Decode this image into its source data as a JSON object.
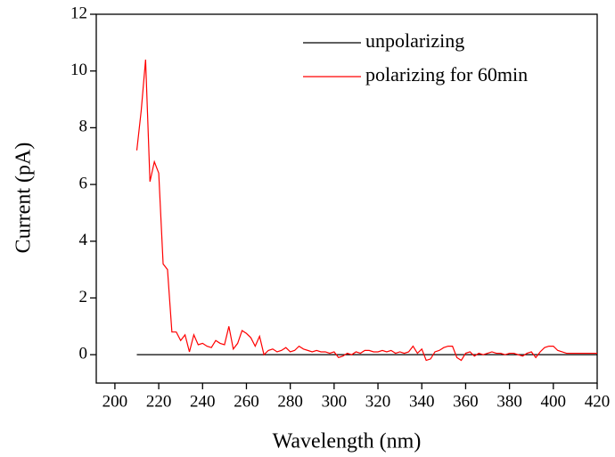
{
  "chart_data": {
    "type": "line",
    "xlabel": "Wavelength (nm)",
    "ylabel": "Current (pA)",
    "x": [
      210,
      212,
      214,
      216,
      218,
      220,
      222,
      224,
      226,
      228,
      230,
      232,
      234,
      236,
      238,
      240,
      242,
      244,
      246,
      248,
      250,
      252,
      254,
      256,
      258,
      260,
      262,
      264,
      266,
      268,
      270,
      272,
      274,
      276,
      278,
      280,
      282,
      284,
      286,
      288,
      290,
      292,
      294,
      296,
      298,
      300,
      302,
      304,
      306,
      308,
      310,
      312,
      314,
      316,
      318,
      320,
      322,
      324,
      326,
      328,
      330,
      332,
      334,
      336,
      338,
      340,
      342,
      344,
      346,
      348,
      350,
      352,
      354,
      356,
      358,
      360,
      362,
      364,
      366,
      368,
      370,
      372,
      374,
      376,
      378,
      380,
      382,
      384,
      386,
      388,
      390,
      392,
      394,
      396,
      398,
      400,
      402,
      404,
      406,
      408,
      410,
      412,
      414,
      416,
      418,
      420
    ],
    "series": [
      {
        "name": "unpolarizing",
        "color": "#000000",
        "values": [
          0,
          0,
          0,
          0,
          0,
          0,
          0,
          0,
          0,
          0,
          0,
          0,
          0,
          0,
          0,
          0,
          0,
          0,
          0,
          0,
          0,
          0,
          0,
          0,
          0,
          0,
          0,
          0,
          0,
          0,
          0,
          0,
          0,
          0,
          0,
          0,
          0,
          0,
          0,
          0,
          0,
          0,
          0,
          0,
          0,
          0,
          0,
          0,
          0,
          0,
          0,
          0,
          0,
          0,
          0,
          0,
          0,
          0,
          0,
          0,
          0,
          0,
          0,
          0,
          0,
          0,
          0,
          0,
          0,
          0,
          0,
          0,
          0,
          0,
          0,
          0,
          0,
          0,
          0,
          0,
          0,
          0,
          0,
          0,
          0,
          0,
          0,
          0,
          0,
          0,
          0,
          0,
          0,
          0,
          0,
          0,
          0,
          0,
          0,
          0,
          0,
          0,
          0,
          0,
          0,
          0
        ]
      },
      {
        "name": "polarizing for 60min",
        "color": "#ff0000",
        "values": [
          7.2,
          8.6,
          10.4,
          6.1,
          6.8,
          6.4,
          3.2,
          3.0,
          0.8,
          0.8,
          0.5,
          0.7,
          0.1,
          0.7,
          0.35,
          0.4,
          0.3,
          0.25,
          0.5,
          0.4,
          0.35,
          1.0,
          0.2,
          0.4,
          0.85,
          0.75,
          0.6,
          0.3,
          0.65,
          0.0,
          0.15,
          0.2,
          0.1,
          0.15,
          0.25,
          0.1,
          0.15,
          0.3,
          0.2,
          0.15,
          0.1,
          0.15,
          0.1,
          0.1,
          0.05,
          0.1,
          -0.1,
          -0.05,
          0.05,
          0.0,
          0.1,
          0.05,
          0.15,
          0.15,
          0.1,
          0.1,
          0.15,
          0.1,
          0.15,
          0.05,
          0.1,
          0.05,
          0.1,
          0.3,
          0.05,
          0.2,
          -0.2,
          -0.15,
          0.1,
          0.15,
          0.25,
          0.3,
          0.3,
          -0.1,
          -0.2,
          0.05,
          0.1,
          -0.05,
          0.05,
          0.0,
          0.05,
          0.1,
          0.05,
          0.05,
          0.0,
          0.05,
          0.05,
          0.0,
          -0.05,
          0.05,
          0.1,
          -0.1,
          0.1,
          0.25,
          0.3,
          0.3,
          0.15,
          0.1,
          0.05,
          0.05,
          0.05,
          0.05,
          0.05,
          0.05,
          0.05,
          0.05
        ]
      }
    ],
    "xlim": [
      191.5,
      420
    ],
    "xticks": [
      200,
      220,
      240,
      260,
      280,
      300,
      320,
      340,
      360,
      380,
      400,
      420
    ],
    "ylim": [
      -1,
      12
    ],
    "yticks": [
      0,
      2,
      4,
      6,
      8,
      10,
      12
    ],
    "legend": "upper right"
  }
}
